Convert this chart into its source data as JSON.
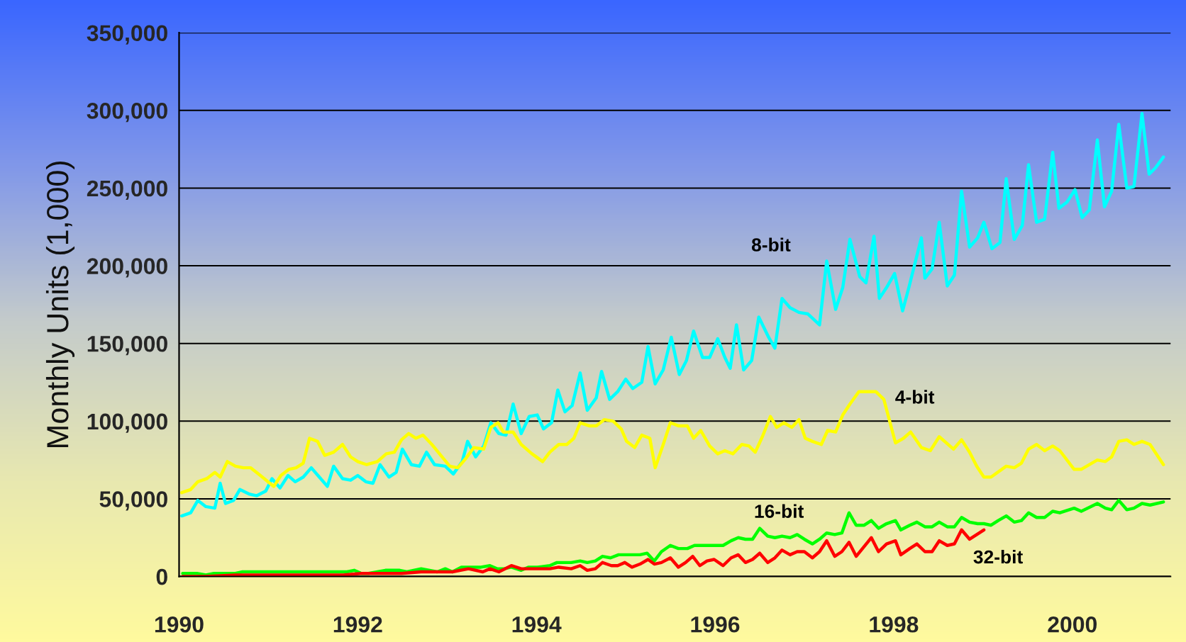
{
  "chart_data": {
    "type": "line",
    "ylabel": "Monthly Units (1,000)",
    "xlim": [
      1990,
      2001.1
    ],
    "ylim": [
      0,
      350000
    ],
    "xticks": [
      1990,
      1992,
      1994,
      1996,
      1998,
      2000
    ],
    "yticks": [
      {
        "value": 0,
        "label": "0"
      },
      {
        "value": 50000,
        "label": "50,000"
      },
      {
        "value": 100000,
        "label": "100,000"
      },
      {
        "value": 150000,
        "label": "150,000"
      },
      {
        "value": 200000,
        "label": "200,000"
      },
      {
        "value": 250000,
        "label": "250,000"
      },
      {
        "value": 300000,
        "label": "300,000"
      },
      {
        "value": 350000,
        "label": "350,000"
      }
    ],
    "grid": "y",
    "series": [
      {
        "name": "8-bit",
        "color": "#00ffff",
        "x": [
          1990.03,
          1990.13,
          1990.21,
          1990.3,
          1990.4,
          1990.46,
          1990.52,
          1990.61,
          1990.68,
          1990.79,
          1990.87,
          1990.97,
          1991.04,
          1991.13,
          1991.22,
          1991.3,
          1991.39,
          1991.48,
          1991.57,
          1991.66,
          1991.73,
          1991.83,
          1991.92,
          1992.0,
          1992.09,
          1992.17,
          1992.25,
          1992.35,
          1992.43,
          1992.5,
          1992.6,
          1992.69,
          1992.77,
          1992.86,
          1992.98,
          1993.07,
          1993.17,
          1993.23,
          1993.32,
          1993.41,
          1993.49,
          1993.58,
          1993.66,
          1993.74,
          1993.83,
          1993.92,
          1994.01,
          1994.08,
          1994.17,
          1994.24,
          1994.32,
          1994.4,
          1994.49,
          1994.57,
          1994.67,
          1994.73,
          1994.82,
          1994.91,
          1995.0,
          1995.08,
          1995.18,
          1995.25,
          1995.33,
          1995.42,
          1995.51,
          1995.6,
          1995.68,
          1995.76,
          1995.86,
          1995.94,
          1996.03,
          1996.11,
          1996.17,
          1996.24,
          1996.32,
          1996.41,
          1996.49,
          1996.6,
          1996.67,
          1996.75,
          1996.84,
          1996.94,
          1997.04,
          1997.17,
          1997.25,
          1997.35,
          1997.43,
          1997.51,
          1997.62,
          1997.69,
          1997.78,
          1997.84,
          1997.92,
          1998.01,
          1998.1,
          1998.17,
          1998.31,
          1998.35,
          1998.43,
          1998.51,
          1998.6,
          1998.68,
          1998.76,
          1998.85,
          1998.94,
          1999.01,
          1999.1,
          1999.19,
          1999.26,
          1999.35,
          1999.44,
          1999.51,
          1999.6,
          1999.69,
          1999.78,
          1999.85,
          1999.94,
          2000.03,
          2000.11,
          2000.19,
          2000.28,
          2000.36,
          2000.44,
          2000.52,
          2000.61,
          2000.69,
          2000.78,
          2000.86,
          2000.93,
          2001.02
        ],
        "values": [
          39000,
          41000,
          49000,
          45000,
          44000,
          60000,
          47000,
          49000,
          56000,
          53000,
          52000,
          55000,
          63000,
          57000,
          65000,
          61000,
          64000,
          70000,
          64000,
          58000,
          71000,
          63000,
          62000,
          65000,
          61000,
          60000,
          72000,
          64000,
          67000,
          82000,
          72000,
          71000,
          80000,
          72000,
          71000,
          66000,
          74000,
          87000,
          77000,
          84000,
          99000,
          92000,
          91000,
          111000,
          92000,
          103000,
          104000,
          95000,
          99000,
          120000,
          106000,
          110000,
          131000,
          107000,
          115000,
          132000,
          114000,
          119000,
          127000,
          121000,
          125000,
          148000,
          124000,
          133000,
          154000,
          130000,
          139000,
          158000,
          141000,
          141000,
          153000,
          141000,
          134000,
          162000,
          133000,
          139000,
          167000,
          154000,
          147000,
          179000,
          173000,
          170000,
          169000,
          162000,
          203000,
          172000,
          186000,
          217000,
          193000,
          189000,
          219000,
          179000,
          186000,
          195000,
          171000,
          186000,
          218000,
          192000,
          198000,
          228000,
          187000,
          194000,
          248000,
          212000,
          218000,
          228000,
          211000,
          215000,
          256000,
          217000,
          226000,
          265000,
          228000,
          230000,
          273000,
          237000,
          241000,
          249000,
          231000,
          236000,
          281000,
          238000,
          248000,
          291000,
          250000,
          251000,
          298000,
          259000,
          263000,
          270000
        ]
      },
      {
        "name": "4-bit",
        "color": "#ffff00",
        "x": [
          1990.03,
          1990.13,
          1990.21,
          1990.31,
          1990.4,
          1990.46,
          1990.54,
          1990.63,
          1990.72,
          1990.8,
          1990.91,
          1991.06,
          1991.14,
          1991.23,
          1991.31,
          1991.39,
          1991.46,
          1991.55,
          1991.63,
          1991.73,
          1991.83,
          1991.92,
          1992.0,
          1992.1,
          1992.22,
          1992.32,
          1992.41,
          1992.49,
          1992.57,
          1992.65,
          1992.73,
          1992.83,
          1992.93,
          1993.03,
          1993.12,
          1993.21,
          1993.3,
          1993.41,
          1993.49,
          1993.57,
          1993.63,
          1993.74,
          1993.83,
          1993.95,
          1994.07,
          1994.15,
          1994.25,
          1994.34,
          1994.42,
          1994.49,
          1994.59,
          1994.67,
          1994.76,
          1994.86,
          1994.95,
          1995.01,
          1995.1,
          1995.18,
          1995.27,
          1995.33,
          1995.42,
          1995.5,
          1995.59,
          1995.69,
          1995.76,
          1995.84,
          1995.94,
          1996.03,
          1996.11,
          1996.2,
          1996.3,
          1996.38,
          1996.45,
          1996.53,
          1996.62,
          1996.69,
          1996.77,
          1996.86,
          1996.94,
          1997.01,
          1997.09,
          1997.19,
          1997.26,
          1997.35,
          1997.43,
          1997.51,
          1997.61,
          1997.7,
          1997.8,
          1997.89,
          1998.02,
          1998.11,
          1998.19,
          1998.31,
          1998.41,
          1998.51,
          1998.67,
          1998.76,
          1998.85,
          1998.93,
          1999.01,
          1999.09,
          1999.26,
          1999.35,
          1999.43,
          1999.51,
          1999.6,
          1999.69,
          1999.78,
          1999.86,
          2000.02,
          2000.1,
          2000.28,
          2000.37,
          2000.44,
          2000.52,
          2000.61,
          2000.69,
          2000.78,
          2000.87,
          2001.02
        ],
        "values": [
          54000,
          56000,
          61000,
          63000,
          67000,
          64000,
          74000,
          71000,
          70000,
          70000,
          65000,
          58000,
          65000,
          69000,
          70000,
          73000,
          89000,
          87000,
          78000,
          80000,
          85000,
          77000,
          74000,
          72000,
          74000,
          79000,
          80000,
          88000,
          92000,
          89000,
          91000,
          85000,
          78000,
          71000,
          70000,
          76000,
          83000,
          82000,
          96000,
          99000,
          93000,
          93000,
          85000,
          79000,
          74000,
          80000,
          85000,
          85000,
          89000,
          99000,
          97000,
          97000,
          101000,
          100000,
          95000,
          87000,
          83000,
          91000,
          89000,
          70000,
          85000,
          99000,
          97000,
          97000,
          89000,
          94000,
          84000,
          79000,
          81000,
          79000,
          85000,
          84000,
          80000,
          90000,
          103000,
          96000,
          99000,
          96000,
          101000,
          89000,
          87000,
          85000,
          94000,
          93000,
          104000,
          111000,
          119000,
          119000,
          119000,
          114000,
          86000,
          89000,
          93000,
          83000,
          81000,
          90000,
          82000,
          88000,
          80000,
          71000,
          64000,
          64000,
          71000,
          70000,
          73000,
          82000,
          85000,
          81000,
          84000,
          81000,
          69000,
          69000,
          75000,
          74000,
          77000,
          87000,
          88000,
          85000,
          87000,
          85000,
          72000
        ]
      },
      {
        "name": "16-bit",
        "color": "#00ff00",
        "x": [
          1990.04,
          1990.2,
          1990.3,
          1990.39,
          1990.63,
          1990.71,
          1991.03,
          1991.11,
          1991.21,
          1991.31,
          1991.88,
          1991.96,
          1992.04,
          1992.12,
          1992.31,
          1992.47,
          1992.55,
          1992.71,
          1992.89,
          1992.98,
          1993.06,
          1993.16,
          1993.38,
          1993.48,
          1993.56,
          1993.64,
          1993.72,
          1993.83,
          1993.91,
          1994.01,
          1994.15,
          1994.23,
          1994.39,
          1994.49,
          1994.57,
          1994.66,
          1994.74,
          1994.83,
          1994.92,
          1995.16,
          1995.24,
          1995.32,
          1995.4,
          1995.5,
          1995.59,
          1995.69,
          1995.77,
          1996.09,
          1996.18,
          1996.26,
          1996.34,
          1996.42,
          1996.5,
          1996.59,
          1996.67,
          1996.75,
          1996.84,
          1996.92,
          1997.0,
          1997.09,
          1997.17,
          1997.25,
          1997.34,
          1997.42,
          1997.5,
          1997.58,
          1997.67,
          1997.75,
          1997.83,
          1997.92,
          1998.02,
          1998.08,
          1998.18,
          1998.26,
          1998.35,
          1998.43,
          1998.51,
          1998.6,
          1998.68,
          1998.76,
          1998.85,
          1998.94,
          1999.01,
          1999.09,
          1999.17,
          1999.26,
          1999.35,
          1999.43,
          1999.51,
          1999.6,
          1999.69,
          1999.78,
          1999.86,
          2000.02,
          2000.1,
          2000.28,
          2000.37,
          2000.44,
          2000.52,
          2000.61,
          2000.69,
          2000.78,
          2000.87,
          2001.02
        ],
        "values": [
          2000,
          2000,
          1000,
          2000,
          2000,
          3000,
          3000,
          3000,
          3000,
          3000,
          3000,
          4000,
          2000,
          2000,
          4000,
          4000,
          3000,
          5000,
          3000,
          5000,
          3000,
          6000,
          6000,
          7000,
          5000,
          5000,
          6000,
          4000,
          6000,
          6000,
          7000,
          9000,
          9000,
          10000,
          9000,
          10000,
          13000,
          12000,
          14000,
          14000,
          15000,
          10000,
          16000,
          20000,
          18000,
          18000,
          20000,
          20000,
          23000,
          25000,
          24000,
          24000,
          31000,
          26000,
          25000,
          26000,
          25000,
          27000,
          24000,
          21000,
          24000,
          28000,
          27000,
          28000,
          41000,
          33000,
          33000,
          36000,
          31000,
          34000,
          36000,
          30000,
          33000,
          35000,
          32000,
          32000,
          35000,
          32000,
          32000,
          38000,
          35000,
          34000,
          34000,
          33000,
          36000,
          39000,
          35000,
          36000,
          41000,
          38000,
          38000,
          42000,
          41000,
          44000,
          42000,
          47000,
          44000,
          43000,
          49000,
          43000,
          44000,
          47000,
          46000,
          48000
        ]
      },
      {
        "name": "32-bit",
        "color": "#ff0000",
        "x": [
          1990.04,
          1990.3,
          1990.63,
          1991.31,
          1991.84,
          1992.04,
          1992.33,
          1992.49,
          1992.71,
          1992.91,
          1993.06,
          1993.24,
          1993.4,
          1993.48,
          1993.58,
          1993.72,
          1993.83,
          1993.93,
          1994.15,
          1994.25,
          1994.39,
          1994.49,
          1994.57,
          1994.66,
          1994.74,
          1994.84,
          1994.91,
          1994.99,
          1995.07,
          1995.16,
          1995.25,
          1995.32,
          1995.4,
          1995.5,
          1995.59,
          1995.67,
          1995.75,
          1995.83,
          1995.91,
          1995.99,
          1996.09,
          1996.18,
          1996.26,
          1996.34,
          1996.42,
          1996.5,
          1996.59,
          1996.67,
          1996.75,
          1996.84,
          1996.92,
          1997.0,
          1997.09,
          1997.17,
          1997.25,
          1997.34,
          1997.42,
          1997.5,
          1997.58,
          1997.75,
          1997.83,
          1997.92,
          1998.02,
          1998.08,
          1998.18,
          1998.26,
          1998.35,
          1998.43,
          1998.51,
          1998.6,
          1998.68,
          1998.76,
          1998.85,
          1999.01
        ],
        "values": [
          0,
          0,
          1000,
          1000,
          1000,
          2000,
          2000,
          2000,
          3000,
          3000,
          3000,
          5000,
          3000,
          5000,
          3000,
          7000,
          5000,
          5000,
          5000,
          6000,
          5000,
          7000,
          4000,
          5000,
          9000,
          7000,
          7000,
          9000,
          6000,
          8000,
          11000,
          8000,
          9000,
          12000,
          6000,
          9000,
          13000,
          7000,
          10000,
          11000,
          7000,
          12000,
          14000,
          9000,
          11000,
          15000,
          9000,
          12000,
          17000,
          14000,
          16000,
          16000,
          12000,
          16000,
          23000,
          13000,
          16000,
          22000,
          13000,
          25000,
          16000,
          21000,
          23000,
          14000,
          18000,
          21000,
          16000,
          16000,
          23000,
          20000,
          21000,
          30000,
          24000,
          30000
        ]
      }
    ]
  }
}
